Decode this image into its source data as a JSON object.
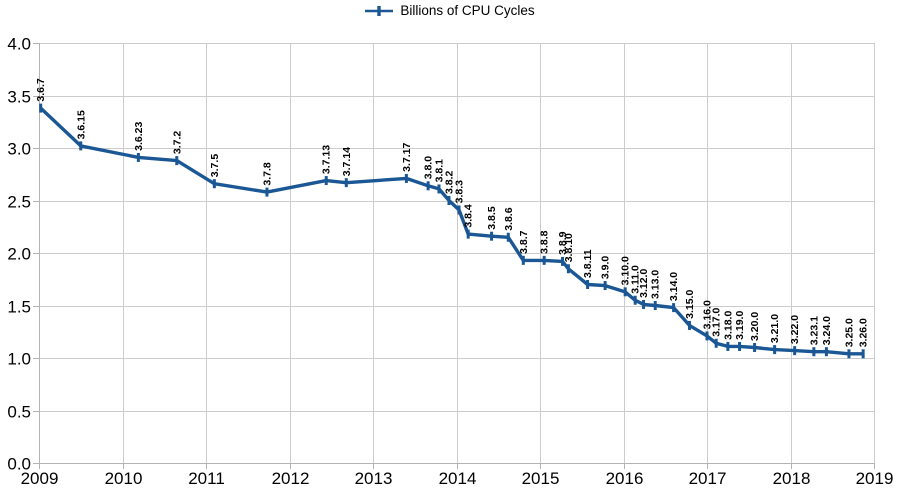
{
  "chart_data": {
    "type": "line",
    "title": "",
    "legend_label": "Billions of CPU Cycles",
    "legend_position": "top-center",
    "grid": true,
    "xlim": [
      2009,
      2019
    ],
    "ylim": [
      0.0,
      4.0
    ],
    "xticks": [
      2009,
      2010,
      2011,
      2012,
      2013,
      2014,
      2015,
      2016,
      2017,
      2018,
      2019
    ],
    "yticks": [
      0.0,
      0.5,
      1.0,
      1.5,
      2.0,
      2.5,
      3.0,
      3.5,
      4.0
    ],
    "ytick_labels": [
      "0.0",
      "0.5",
      "1.0",
      "1.5",
      "2.0",
      "2.5",
      "3.0",
      "3.5",
      "4.0"
    ],
    "series": [
      {
        "name": "Billions of CPU Cycles",
        "color": "#1a5794",
        "points": [
          {
            "label": "3.6.7",
            "x": 2009.02,
            "y": 3.38
          },
          {
            "label": "3.6.15",
            "x": 2009.5,
            "y": 3.02
          },
          {
            "label": "3.6.23",
            "x": 2010.19,
            "y": 2.91
          },
          {
            "label": "3.7.2",
            "x": 2010.65,
            "y": 2.88
          },
          {
            "label": "3.7.5",
            "x": 2011.1,
            "y": 2.66
          },
          {
            "label": "3.7.8",
            "x": 2011.73,
            "y": 2.58
          },
          {
            "label": "3.7.13",
            "x": 2012.44,
            "y": 2.69
          },
          {
            "label": "3.7.14",
            "x": 2012.68,
            "y": 2.67
          },
          {
            "label": "3.7.17",
            "x": 2013.4,
            "y": 2.71
          },
          {
            "label": "3.8.0",
            "x": 2013.66,
            "y": 2.64
          },
          {
            "label": "3.8.1",
            "x": 2013.79,
            "y": 2.61
          },
          {
            "label": "3.8.2",
            "x": 2013.91,
            "y": 2.5
          },
          {
            "label": "3.8.3",
            "x": 2014.03,
            "y": 2.41
          },
          {
            "label": "3.8.4",
            "x": 2014.14,
            "y": 2.18
          },
          {
            "label": "3.8.5",
            "x": 2014.42,
            "y": 2.16
          },
          {
            "label": "3.8.6",
            "x": 2014.62,
            "y": 2.15
          },
          {
            "label": "3.8.7",
            "x": 2014.8,
            "y": 1.93
          },
          {
            "label": "3.8.8",
            "x": 2015.05,
            "y": 1.93
          },
          {
            "label": "3.8.9",
            "x": 2015.27,
            "y": 1.92
          },
          {
            "label": "3.8.10",
            "x": 2015.34,
            "y": 1.85
          },
          {
            "label": "3.8.11",
            "x": 2015.57,
            "y": 1.7
          },
          {
            "label": "3.9.0",
            "x": 2015.78,
            "y": 1.69
          },
          {
            "label": "3.10.0",
            "x": 2016.02,
            "y": 1.63
          },
          {
            "label": "3.11.0",
            "x": 2016.14,
            "y": 1.55
          },
          {
            "label": "3.12.0",
            "x": 2016.24,
            "y": 1.51
          },
          {
            "label": "3.13.0",
            "x": 2016.38,
            "y": 1.5
          },
          {
            "label": "3.14.0",
            "x": 2016.6,
            "y": 1.48
          },
          {
            "label": "3.15.0",
            "x": 2016.79,
            "y": 1.31
          },
          {
            "label": "3.16.0",
            "x": 2017.0,
            "y": 1.21
          },
          {
            "label": "3.17.0",
            "x": 2017.11,
            "y": 1.14
          },
          {
            "label": "3.18.0",
            "x": 2017.25,
            "y": 1.11
          },
          {
            "label": "3.19.0",
            "x": 2017.39,
            "y": 1.11
          },
          {
            "label": "3.20.0",
            "x": 2017.57,
            "y": 1.1
          },
          {
            "label": "3.21.0",
            "x": 2017.81,
            "y": 1.08
          },
          {
            "label": "3.22.0",
            "x": 2018.05,
            "y": 1.07
          },
          {
            "label": "3.23.1",
            "x": 2018.28,
            "y": 1.06
          },
          {
            "label": "3.24.0",
            "x": 2018.43,
            "y": 1.06
          },
          {
            "label": "3.25.0",
            "x": 2018.7,
            "y": 1.04
          },
          {
            "label": "3.26.0",
            "x": 2018.87,
            "y": 1.04
          }
        ]
      }
    ]
  },
  "colors": {
    "line": "#1a5794",
    "gridline": "#cccccc",
    "axis": "#b3b3b3",
    "text": "#000000",
    "background": "#ffffff"
  }
}
